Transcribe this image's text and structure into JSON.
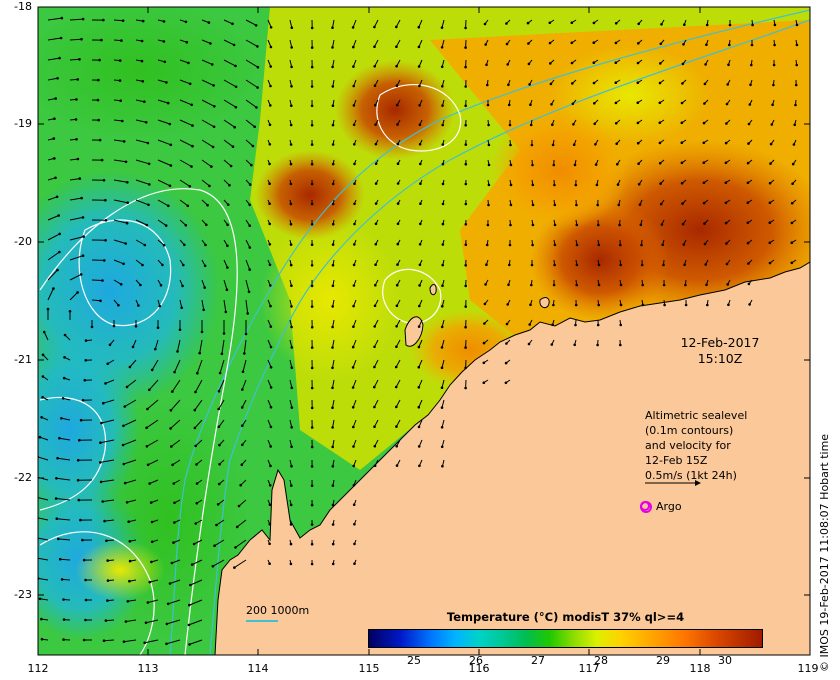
{
  "map": {
    "lat_labels": [
      "-18",
      "-19",
      "-20",
      "-21",
      "-22",
      "-23"
    ],
    "lon_labels": [
      "112",
      "113",
      "114",
      "115",
      "116",
      "117",
      "118",
      "119"
    ],
    "date": "12-Feb-2017",
    "time": "15:10Z",
    "altimetry_note": {
      "line1": "Altimetric sealevel",
      "line2": "(0.1m contours)",
      "line3": "and velocity for",
      "line4": "12-Feb 15Z",
      "line5": "0.5m/s (1kt 24h)"
    },
    "argo_label": "Argo",
    "colorbar": {
      "title": "Temperature (°C) modisT 37% ql>=4",
      "ticks": [
        "25",
        "26",
        "27",
        "28",
        "29",
        "30"
      ]
    },
    "depth_legend": "200  1000m",
    "credit": "© IMOS 19-Feb-2017 11:08:07 Hobart time",
    "colors": {
      "land": "#fbc89a",
      "coastline": "#000000",
      "contour": "#ffffff",
      "bathymetry": "#40c0d0",
      "argo": "#e600e6"
    }
  }
}
